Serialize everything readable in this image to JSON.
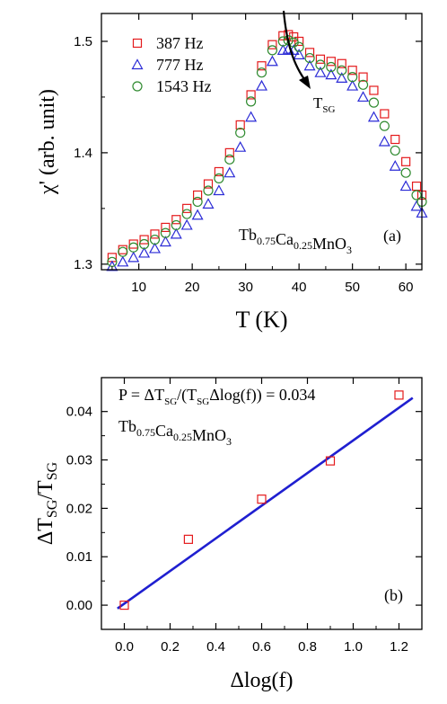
{
  "chart_data": [
    {
      "type": "scatter",
      "panel_label": "(a)",
      "compound_label": {
        "base": [
          "Tb",
          "Ca",
          "MnO"
        ],
        "subs": [
          "0.75",
          "0.25",
          "3"
        ]
      },
      "xlabel": "T (K)",
      "ylabel": "χ' (arb. unit)",
      "xlim": [
        3,
        63
      ],
      "ylim": [
        1.295,
        1.525
      ],
      "xticks": [
        10,
        20,
        30,
        40,
        50,
        60
      ],
      "yticks": [
        1.3,
        1.4,
        1.5
      ],
      "ytick_labels": [
        "1.3",
        "1.4",
        "1.5"
      ],
      "annotation": {
        "base": "T",
        "sub": "SG"
      },
      "series": [
        {
          "name": "387 Hz",
          "marker": "square",
          "color": "#e41a1c",
          "x": [
            5,
            7,
            9,
            11,
            13,
            15,
            17,
            19,
            21,
            23,
            25,
            27,
            29,
            31,
            33,
            35,
            37,
            38,
            39,
            40,
            42,
            44,
            46,
            48,
            50,
            52,
            54,
            56,
            58,
            60,
            62,
            63
          ],
          "y": [
            1.306,
            1.313,
            1.318,
            1.322,
            1.327,
            1.333,
            1.34,
            1.35,
            1.362,
            1.372,
            1.383,
            1.4,
            1.425,
            1.452,
            1.478,
            1.497,
            1.505,
            1.506,
            1.504,
            1.5,
            1.49,
            1.484,
            1.482,
            1.48,
            1.474,
            1.468,
            1.456,
            1.435,
            1.412,
            1.392,
            1.37,
            1.362
          ]
        },
        {
          "name": "777 Hz",
          "marker": "triangle",
          "color": "#2b2bd6",
          "x": [
            5,
            7,
            9,
            11,
            13,
            15,
            17,
            19,
            21,
            23,
            25,
            27,
            29,
            31,
            33,
            35,
            37,
            38,
            39,
            40,
            42,
            44,
            46,
            48,
            50,
            52,
            54,
            56,
            58,
            60,
            62,
            63
          ],
          "y": [
            1.298,
            1.302,
            1.306,
            1.31,
            1.314,
            1.32,
            1.327,
            1.335,
            1.344,
            1.354,
            1.366,
            1.382,
            1.405,
            1.432,
            1.46,
            1.482,
            1.492,
            1.493,
            1.492,
            1.488,
            1.478,
            1.472,
            1.47,
            1.467,
            1.46,
            1.45,
            1.432,
            1.41,
            1.388,
            1.37,
            1.352,
            1.346
          ]
        },
        {
          "name": "1543 Hz",
          "marker": "circle",
          "color": "#2f8a2f",
          "x": [
            5,
            7,
            9,
            11,
            13,
            15,
            17,
            19,
            21,
            23,
            25,
            27,
            29,
            31,
            33,
            35,
            37,
            38,
            39,
            40,
            42,
            44,
            46,
            48,
            50,
            52,
            54,
            56,
            58,
            60,
            62,
            63
          ],
          "y": [
            1.302,
            1.311,
            1.315,
            1.318,
            1.322,
            1.328,
            1.335,
            1.345,
            1.356,
            1.366,
            1.377,
            1.394,
            1.418,
            1.446,
            1.472,
            1.492,
            1.5,
            1.501,
            1.499,
            1.495,
            1.485,
            1.479,
            1.477,
            1.474,
            1.468,
            1.461,
            1.445,
            1.424,
            1.402,
            1.382,
            1.362,
            1.356
          ]
        }
      ]
    },
    {
      "type": "scatter",
      "panel_label": "(b)",
      "compound_label": {
        "base": [
          "Tb",
          "Ca",
          "MnO"
        ],
        "subs": [
          "0.75",
          "0.25",
          "3"
        ]
      },
      "formula": {
        "p1": "P = ΔT",
        "s1": "SG",
        "p2": "/(T",
        "s2": "SG",
        "p3": "Δlog(f)) = 0.034"
      },
      "xlabel": "Δlog(f)",
      "ylabel": {
        "p1": "ΔT",
        "s1": "SG",
        "p2": "/T",
        "s2": "SG"
      },
      "xlim": [
        -0.1,
        1.3
      ],
      "ylim": [
        -0.005,
        0.047
      ],
      "xticks": [
        0.0,
        0.2,
        0.4,
        0.6,
        0.8,
        1.0,
        1.2
      ],
      "xtick_labels": [
        "0.0",
        "0.2",
        "0.4",
        "0.6",
        "0.8",
        "1.0",
        "1.2"
      ],
      "yticks": [
        0.0,
        0.01,
        0.02,
        0.03,
        0.04
      ],
      "ytick_labels": [
        "0.00",
        "0.01",
        "0.02",
        "0.03",
        "0.04"
      ],
      "points": {
        "marker": "square",
        "color": "#e41a1c",
        "x": [
          0.0,
          0.28,
          0.6,
          0.9,
          1.2
        ],
        "y": [
          0.0,
          0.0136,
          0.0219,
          0.0298,
          0.0434
        ]
      },
      "fit_line": {
        "color": "#1f1fd0",
        "x": [
          -0.03,
          1.26
        ],
        "y": [
          -0.0007,
          0.0428
        ]
      }
    }
  ]
}
